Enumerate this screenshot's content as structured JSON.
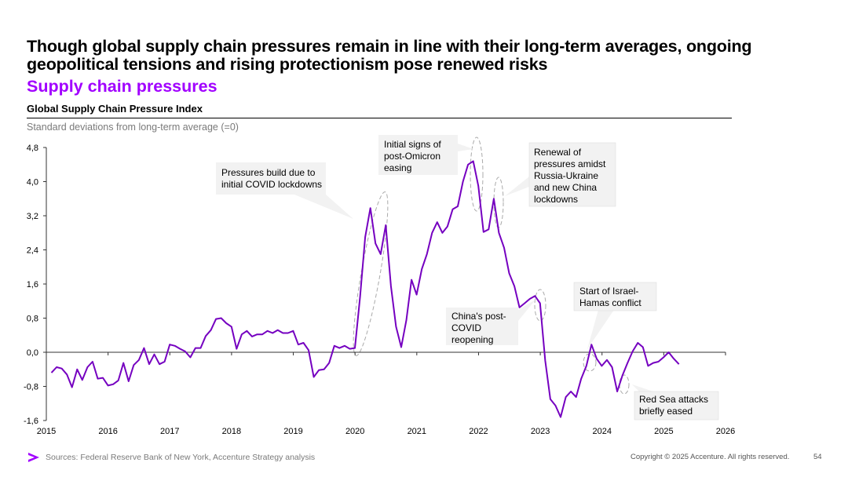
{
  "header": {
    "title": "Though global supply chain pressures remain in line with their long-term averages, ongoing geopolitical tensions and rising protectionism pose renewed risks",
    "subtitle": "Supply chain pressures",
    "chart_label": "Global Supply Chain Pressure Index",
    "units": "Standard deviations from long-term average (=0)"
  },
  "colors": {
    "accent": "#a100ff",
    "line": "#7500c0",
    "callout_bg": "#f2f2f2"
  },
  "footer": {
    "sources": "Sources: Federal Reserve Bank of New York, Accenture Strategy analysis",
    "copyright": "Copyright © 2025 Accenture. All rights reserved.",
    "page": "54"
  },
  "chart_data": {
    "type": "line",
    "title": "Global Supply Chain Pressure Index",
    "ylabel": "Standard deviations from long-term average (=0)",
    "ylim": [
      -1.6,
      4.8
    ],
    "xlim": [
      2015,
      2026
    ],
    "yticks": [
      -1.6,
      -0.8,
      0.0,
      0.8,
      1.6,
      2.4,
      3.2,
      4.0,
      4.8
    ],
    "ytick_labels": [
      "-1,6",
      "-0,8",
      "0,0",
      "0,8",
      "1,6",
      "2,4",
      "3,2",
      "4,0",
      "4,8"
    ],
    "xticks": [
      2015,
      2016,
      2017,
      2018,
      2019,
      2020,
      2021,
      2022,
      2023,
      2024,
      2025,
      2026
    ],
    "xtick_labels": [
      "2015",
      "2016",
      "2017",
      "2018",
      "2019",
      "2020",
      "2021",
      "2022",
      "2023",
      "2024",
      "2025",
      "2026"
    ],
    "series": [
      {
        "name": "Global Supply Chain Pressure Index",
        "start_year": 2015.083,
        "step_years": 0.0833,
        "values": [
          -0.48,
          -0.35,
          -0.38,
          -0.52,
          -0.82,
          -0.4,
          -0.65,
          -0.35,
          -0.22,
          -0.62,
          -0.6,
          -0.78,
          -0.75,
          -0.66,
          -0.25,
          -0.68,
          -0.3,
          -0.18,
          0.1,
          -0.28,
          -0.05,
          -0.28,
          -0.22,
          0.18,
          0.15,
          0.08,
          0.02,
          -0.12,
          0.1,
          0.1,
          0.38,
          0.52,
          0.78,
          0.8,
          0.68,
          0.6,
          0.08,
          0.42,
          0.5,
          0.37,
          0.42,
          0.42,
          0.5,
          0.45,
          0.52,
          0.45,
          0.45,
          0.5,
          0.18,
          0.22,
          0.05,
          -0.58,
          -0.42,
          -0.4,
          -0.25,
          0.15,
          0.1,
          0.15,
          0.08,
          0.1,
          1.3,
          2.7,
          3.38,
          2.55,
          2.3,
          2.98,
          1.55,
          0.6,
          0.12,
          0.75,
          1.7,
          1.35,
          1.95,
          2.3,
          2.8,
          3.05,
          2.8,
          2.95,
          3.35,
          3.42,
          4.0,
          4.4,
          4.48,
          3.9,
          2.82,
          2.88,
          3.6,
          2.8,
          2.45,
          1.85,
          1.55,
          1.05,
          1.15,
          1.25,
          1.32,
          1.15,
          -0.2,
          -1.1,
          -1.25,
          -1.52,
          -1.05,
          -0.92,
          -1.05,
          -0.62,
          -0.32,
          0.18,
          -0.15,
          -0.32,
          -0.18,
          -0.35,
          -0.92,
          -0.55,
          -0.25,
          0.02,
          0.22,
          0.12,
          -0.32,
          -0.25,
          -0.22,
          -0.12,
          0.0,
          -0.15,
          -0.28
        ]
      }
    ],
    "annotations": [
      {
        "lines": [
          "Pressures build due to",
          "initial COVID lockdowns"
        ],
        "target_year": 2020.3,
        "target_value": 3.38
      },
      {
        "lines": [
          "Initial signs of",
          "post-Omicron",
          "easing"
        ],
        "target_year": 2021.95,
        "target_value": 4.48
      },
      {
        "lines": [
          "Renewal of",
          "pressures amidst",
          "Russia-Ukraine",
          "and new China",
          "lockdowns"
        ],
        "target_year": 2022.3,
        "target_value": 3.6
      },
      {
        "lines": [
          "China's post-",
          "COVID",
          "reopening"
        ],
        "target_year": 2022.9,
        "target_value": 1.3
      },
      {
        "lines": [
          "Start of Israel-",
          "Hamas conflict"
        ],
        "target_year": 2023.85,
        "target_value": 0.0
      },
      {
        "lines": [
          "Red Sea attacks",
          "briefly eased"
        ],
        "target_year": 2024.4,
        "target_value": -0.92
      }
    ]
  }
}
